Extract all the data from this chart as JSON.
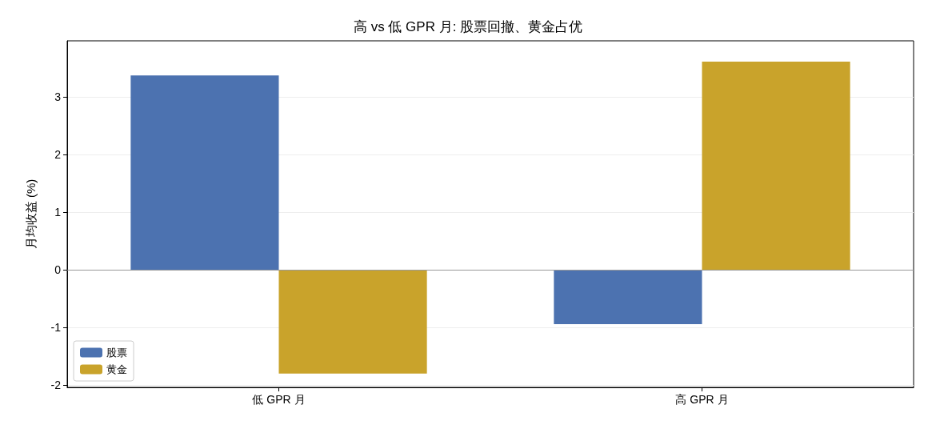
{
  "chart_data": {
    "type": "bar",
    "title": "高 vs 低 GPR 月: 股票回撤、黄金占优",
    "ylabel": "月均收益 (%)",
    "categories": [
      "低 GPR 月",
      "高 GPR 月"
    ],
    "series": [
      {
        "name": "股票",
        "color": "#4c72b0",
        "values": [
          3.38,
          -0.94
        ]
      },
      {
        "name": "黄金",
        "color": "#c9a32b",
        "values": [
          -1.8,
          3.62
        ]
      }
    ],
    "ylim": [
      -2.04,
      3.98
    ],
    "yticks": [
      -2,
      -1,
      0,
      1,
      2,
      3
    ],
    "grid": "y",
    "legend": "bottom left",
    "ref_lines": [
      {
        "axis": "y",
        "value": 0,
        "color": "#999999"
      }
    ]
  }
}
